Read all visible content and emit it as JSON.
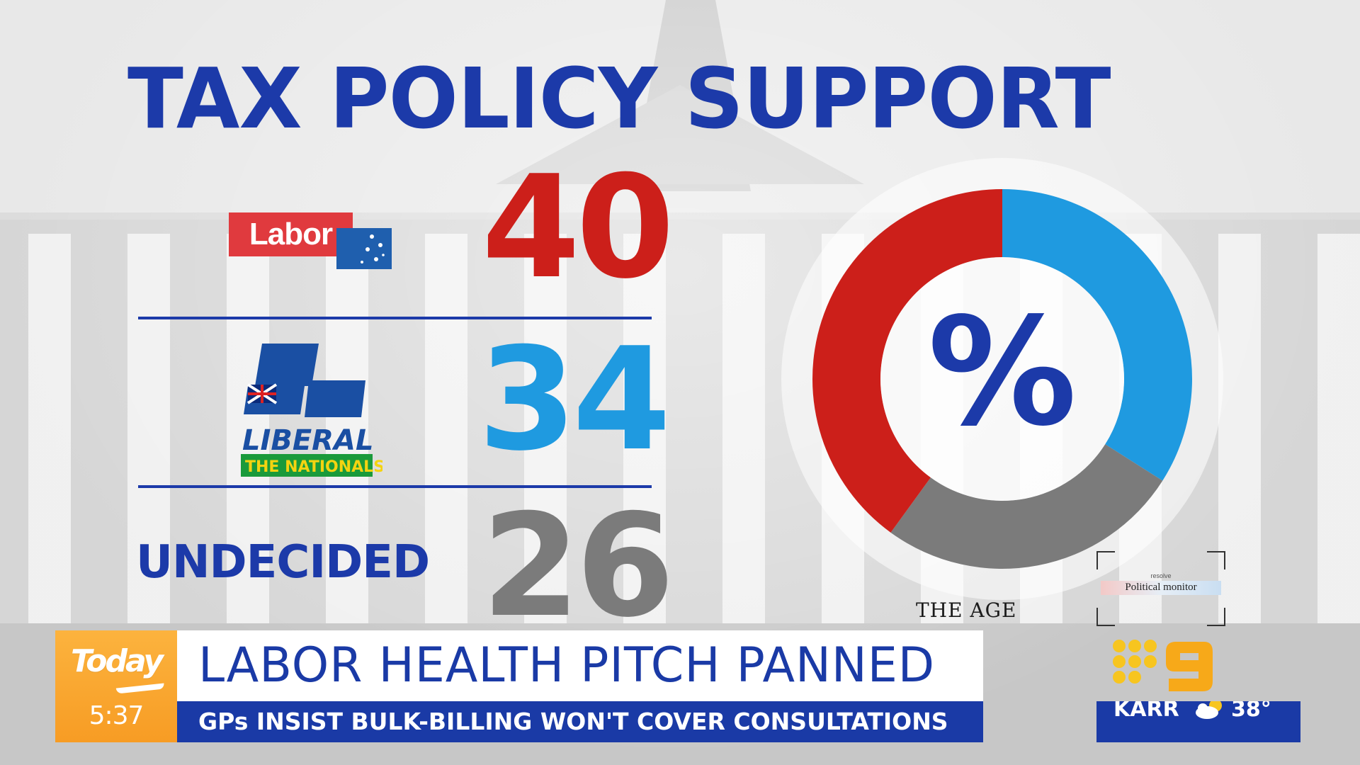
{
  "title": "TAX POLICY SUPPORT",
  "colors": {
    "title_blue": "#1c3aa9",
    "labor_red": "#cc1f1a",
    "coalition_blue": "#1f9ae0",
    "undecided_grey": "#7b7b7b",
    "brand_orange": "#f7a12e",
    "ticker_blue": "#1a3aa6"
  },
  "parties": [
    {
      "label": "Labor",
      "value": "40",
      "logo": "labor-logo"
    },
    {
      "label": "LIBERAL",
      "sublabel": "THE NATIONALS",
      "value": "34",
      "logo": "liberal-nationals-logo"
    },
    {
      "label": "UNDECIDED",
      "value": "26"
    }
  ],
  "donut": {
    "center_symbol": "%"
  },
  "chart_data": {
    "type": "pie",
    "title": "TAX POLICY SUPPORT",
    "categories": [
      "Labor",
      "Liberal / Nationals",
      "Undecided"
    ],
    "values": [
      40,
      34,
      26
    ],
    "colors": [
      "#cc1f1a",
      "#1f9ae0",
      "#7b7b7b"
    ],
    "style": "donut"
  },
  "sources": {
    "newspaper": "THE AGE",
    "poll_tag": "resolve",
    "poll_name": "Political monitor"
  },
  "lower_third": {
    "brand": "Today",
    "time": "5:37",
    "headline": "LABOR HEALTH PITCH PANNED",
    "subheadline": "GPs INSIST BULK-BILLING WON'T COVER CONSULTATIONS"
  },
  "weather": {
    "location": "KARR",
    "temperature": "38°",
    "icon": "partly-cloudy-icon"
  },
  "channel": {
    "logo": "nine-network-logo"
  }
}
